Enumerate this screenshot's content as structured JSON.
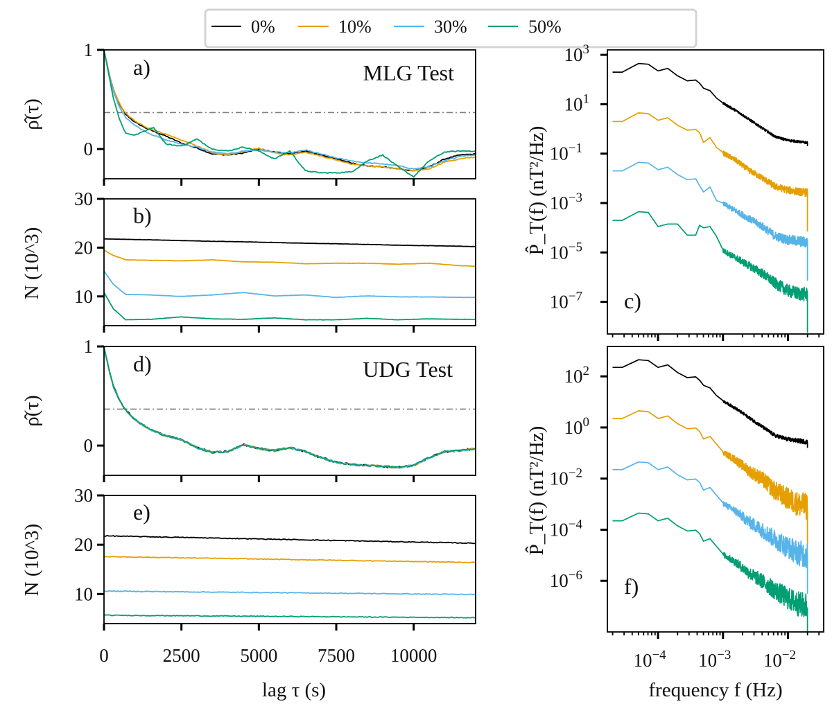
{
  "legend": {
    "entries": [
      {
        "label": "0%",
        "color": "#000000"
      },
      {
        "label": "10%",
        "color": "#E69F00"
      },
      {
        "label": "30%",
        "color": "#56B4E9"
      },
      {
        "label": "50%",
        "color": "#009E73"
      }
    ],
    "placement": "top-center"
  },
  "chart_data": [
    {
      "id": "a",
      "type": "line",
      "panel_label": "a)",
      "annotation": "MLG Test",
      "ylabel": "ρ̂(τ)",
      "xlabel": "",
      "xlim": [
        0,
        12000
      ],
      "ylim": [
        -0.3,
        1.0
      ],
      "yticks": [
        0,
        1
      ],
      "ytick_labels": [
        "0",
        "1"
      ],
      "xticks": [
        0,
        2500,
        5000,
        7500,
        10000
      ],
      "reference_line": {
        "y": 0.368,
        "style": "dash-dot",
        "color": "#808080"
      },
      "x": [
        0,
        150,
        300,
        500,
        700,
        1000,
        1300,
        1600,
        2000,
        2500,
        3000,
        3500,
        4000,
        4500,
        5000,
        5500,
        6000,
        6500,
        7000,
        7500,
        8000,
        8500,
        9000,
        9500,
        10000,
        10500,
        11000,
        11500,
        12000
      ],
      "series": [
        {
          "name": "0%",
          "values": [
            1.0,
            0.78,
            0.6,
            0.45,
            0.35,
            0.27,
            0.22,
            0.18,
            0.13,
            0.06,
            0.01,
            -0.05,
            -0.06,
            -0.04,
            0.0,
            -0.03,
            -0.05,
            -0.02,
            -0.06,
            -0.1,
            -0.14,
            -0.17,
            -0.18,
            -0.2,
            -0.22,
            -0.18,
            -0.1,
            -0.06,
            -0.05
          ]
        },
        {
          "name": "10%",
          "values": [
            1.0,
            0.78,
            0.6,
            0.46,
            0.36,
            0.28,
            0.23,
            0.19,
            0.15,
            0.09,
            0.03,
            -0.04,
            -0.06,
            -0.03,
            0.01,
            -0.04,
            -0.06,
            -0.03,
            -0.07,
            -0.11,
            -0.15,
            -0.17,
            -0.18,
            -0.2,
            -0.22,
            -0.2,
            -0.13,
            -0.1,
            -0.08
          ]
        },
        {
          "name": "30%",
          "values": [
            1.0,
            0.77,
            0.58,
            0.42,
            0.32,
            0.24,
            0.18,
            0.14,
            0.09,
            0.05,
            0.02,
            -0.03,
            -0.05,
            -0.02,
            -0.01,
            -0.03,
            -0.04,
            -0.01,
            -0.05,
            -0.09,
            -0.12,
            -0.14,
            -0.15,
            -0.17,
            -0.2,
            -0.18,
            -0.12,
            -0.07,
            -0.06
          ]
        },
        {
          "name": "50%",
          "values": [
            1.0,
            0.76,
            0.52,
            0.3,
            0.16,
            0.14,
            0.18,
            0.22,
            0.05,
            0.03,
            0.1,
            0.0,
            -0.02,
            0.02,
            -0.02,
            -0.1,
            -0.02,
            -0.22,
            -0.24,
            -0.24,
            -0.23,
            -0.12,
            -0.06,
            -0.18,
            -0.28,
            -0.12,
            -0.03,
            -0.02,
            -0.02
          ]
        }
      ]
    },
    {
      "id": "b",
      "type": "line",
      "panel_label": "b)",
      "ylabel": "N (10^3)",
      "xlabel": "",
      "xlim": [
        0,
        12000
      ],
      "ylim": [
        4,
        30
      ],
      "yticks": [
        10,
        20,
        30
      ],
      "ytick_labels": [
        "10",
        "20",
        "30"
      ],
      "xticks": [
        0,
        2500,
        5000,
        7500,
        10000
      ],
      "x": [
        0,
        300,
        700,
        1500,
        2500,
        3500,
        4500,
        5500,
        6500,
        7500,
        8500,
        9500,
        10500,
        11500,
        12000
      ],
      "series": [
        {
          "name": "0%",
          "values": [
            21.8,
            21.75,
            21.7,
            21.6,
            21.45,
            21.3,
            21.2,
            21.05,
            20.9,
            20.8,
            20.65,
            20.5,
            20.4,
            20.3,
            20.2
          ]
        },
        {
          "name": "10%",
          "values": [
            19.5,
            18.4,
            17.5,
            17.4,
            17.3,
            17.5,
            17.1,
            17.0,
            16.7,
            16.8,
            16.8,
            16.6,
            16.8,
            16.3,
            16.2
          ]
        },
        {
          "name": "30%",
          "values": [
            15.2,
            12.5,
            10.4,
            10.3,
            10.0,
            10.3,
            10.8,
            10.1,
            10.3,
            9.8,
            10.1,
            9.9,
            9.9,
            9.8,
            9.8
          ]
        },
        {
          "name": "50%",
          "values": [
            10.8,
            7.5,
            5.2,
            5.3,
            5.8,
            5.4,
            5.3,
            5.6,
            5.2,
            5.2,
            5.5,
            5.2,
            5.4,
            5.3,
            5.3
          ]
        }
      ]
    },
    {
      "id": "c",
      "type": "line",
      "panel_label": "c)",
      "ylabel": "P̂_T(f) (nT²/Hz)",
      "xlabel": "",
      "xscale": "log",
      "yscale": "log",
      "xlim_log10": [
        -4.78,
        -1.45
      ],
      "ylim_log10": [
        -8.3,
        3.2
      ],
      "ytick_exponents": [
        3,
        1,
        -1,
        -3,
        -5,
        -7
      ],
      "ytick_labels": [
        "10^3",
        "10^1",
        "10^-1",
        "10^-3",
        "10^-5",
        "10^-7"
      ],
      "xtick_exponents": [
        -4,
        -3,
        -2
      ],
      "log10_f": [
        -4.7,
        -4.55,
        -4.3,
        -4.15,
        -4.0,
        -3.85,
        -3.7,
        -3.55,
        -3.42,
        -3.36,
        -3.3,
        -3.2,
        -3.1,
        -3.0,
        -2.8,
        -2.6,
        -2.4,
        -2.2,
        -2.0,
        -1.85,
        -1.7
      ],
      "series": [
        {
          "name": "0%",
          "log10_values": [
            2.3,
            2.3,
            2.65,
            2.62,
            2.35,
            2.45,
            2.15,
            1.95,
            1.98,
            1.85,
            1.65,
            1.55,
            1.25,
            1.05,
            0.75,
            0.4,
            0.05,
            -0.3,
            -0.45,
            -0.5,
            -0.55
          ]
        },
        {
          "name": "10%",
          "log10_values": [
            0.3,
            0.3,
            0.65,
            0.62,
            0.35,
            0.45,
            0.15,
            -0.05,
            -0.02,
            -0.15,
            -0.55,
            -0.35,
            -0.75,
            -0.95,
            -1.25,
            -1.65,
            -1.95,
            -2.3,
            -2.45,
            -2.5,
            -2.55
          ]
        },
        {
          "name": "30%",
          "log10_values": [
            -1.7,
            -1.7,
            -1.35,
            -1.38,
            -1.65,
            -1.55,
            -1.85,
            -2.05,
            -2.02,
            -2.3,
            -2.55,
            -2.35,
            -2.9,
            -3.0,
            -3.3,
            -3.6,
            -3.9,
            -4.3,
            -4.45,
            -4.5,
            -4.55
          ]
        },
        {
          "name": "50%",
          "log10_values": [
            -3.7,
            -3.7,
            -3.35,
            -3.38,
            -3.95,
            -3.85,
            -3.85,
            -4.3,
            -4.3,
            -3.9,
            -4.0,
            -3.95,
            -4.35,
            -4.9,
            -5.2,
            -5.5,
            -5.8,
            -6.2,
            -6.5,
            -6.6,
            -6.65
          ]
        }
      ]
    },
    {
      "id": "d",
      "type": "line",
      "panel_label": "d)",
      "annotation": "UDG Test",
      "ylabel": "ρ̂(τ)",
      "xlabel": "",
      "xlim": [
        0,
        12000
      ],
      "ylim": [
        -0.3,
        1.0
      ],
      "yticks": [
        0,
        1
      ],
      "ytick_labels": [
        "0",
        "1"
      ],
      "xticks": [
        0,
        2500,
        5000,
        7500,
        10000
      ],
      "reference_line": {
        "y": 0.368,
        "style": "dash-dot",
        "color": "#808080"
      },
      "x": [
        0,
        150,
        300,
        500,
        700,
        1000,
        1500,
        2000,
        2500,
        3000,
        3500,
        4000,
        4500,
        5000,
        5500,
        6000,
        6500,
        7000,
        7500,
        8000,
        8500,
        9000,
        9500,
        10000,
        10500,
        11000,
        11500,
        12000
      ],
      "series": [
        {
          "name": "0%",
          "values": [
            1.0,
            0.78,
            0.6,
            0.46,
            0.36,
            0.26,
            0.16,
            0.1,
            0.06,
            -0.02,
            -0.07,
            -0.06,
            0.01,
            -0.03,
            -0.05,
            -0.02,
            -0.06,
            -0.12,
            -0.17,
            -0.19,
            -0.2,
            -0.21,
            -0.22,
            -0.2,
            -0.12,
            -0.06,
            -0.05,
            -0.03
          ]
        },
        {
          "name": "10%",
          "values": [
            1.0,
            0.78,
            0.6,
            0.46,
            0.36,
            0.26,
            0.16,
            0.1,
            0.06,
            -0.02,
            -0.07,
            -0.06,
            0.01,
            -0.03,
            -0.05,
            -0.02,
            -0.06,
            -0.12,
            -0.17,
            -0.19,
            -0.2,
            -0.21,
            -0.22,
            -0.2,
            -0.12,
            -0.06,
            -0.05,
            -0.03
          ]
        },
        {
          "name": "30%",
          "values": [
            1.0,
            0.78,
            0.6,
            0.46,
            0.36,
            0.26,
            0.16,
            0.1,
            0.06,
            -0.02,
            -0.07,
            -0.06,
            0.01,
            -0.03,
            -0.05,
            -0.02,
            -0.06,
            -0.12,
            -0.17,
            -0.19,
            -0.2,
            -0.21,
            -0.22,
            -0.2,
            -0.12,
            -0.06,
            -0.05,
            -0.03
          ]
        },
        {
          "name": "50%",
          "values": [
            1.0,
            0.78,
            0.6,
            0.46,
            0.36,
            0.26,
            0.16,
            0.1,
            0.06,
            -0.02,
            -0.07,
            -0.06,
            0.01,
            -0.03,
            -0.05,
            -0.02,
            -0.06,
            -0.12,
            -0.17,
            -0.19,
            -0.2,
            -0.21,
            -0.22,
            -0.2,
            -0.12,
            -0.06,
            -0.05,
            -0.03
          ]
        }
      ]
    },
    {
      "id": "e",
      "type": "line",
      "panel_label": "e)",
      "ylabel": "N (10^3)",
      "xlabel": "lag τ (s)",
      "xlim": [
        0,
        12000
      ],
      "ylim": [
        4,
        30
      ],
      "yticks": [
        10,
        20,
        30
      ],
      "ytick_labels": [
        "10",
        "20",
        "30"
      ],
      "xticks": [
        0,
        2500,
        5000,
        7500,
        10000
      ],
      "xtick_labels": [
        "0",
        "2500",
        "5000",
        "7500",
        "10000"
      ],
      "x": [
        0,
        12000
      ],
      "series": [
        {
          "name": "0%",
          "values": [
            21.8,
            20.3
          ]
        },
        {
          "name": "10%",
          "values": [
            17.6,
            16.4
          ]
        },
        {
          "name": "30%",
          "values": [
            10.6,
            9.9
          ]
        },
        {
          "name": "50%",
          "values": [
            5.7,
            5.2
          ]
        }
      ]
    },
    {
      "id": "f",
      "type": "line",
      "panel_label": "f)",
      "ylabel": "P̂_T(f) (nT²/Hz)",
      "xlabel": "frequency f (Hz)",
      "xscale": "log",
      "yscale": "log",
      "xlim_log10": [
        -4.78,
        -1.45
      ],
      "ylim_log10": [
        -8.0,
        3.17
      ],
      "ytick_exponents": [
        2,
        0,
        -2,
        -4,
        -6
      ],
      "ytick_labels": [
        "10^2",
        "10^0",
        "10^-2",
        "10^-4",
        "10^-6"
      ],
      "xtick_exponents": [
        -4,
        -3,
        -2
      ],
      "xtick_labels": [
        "10^-4",
        "10^-3",
        "10^-2"
      ],
      "log10_f": [
        -4.7,
        -4.55,
        -4.3,
        -4.15,
        -4.0,
        -3.85,
        -3.7,
        -3.55,
        -3.42,
        -3.36,
        -3.3,
        -3.2,
        -3.1,
        -3.0,
        -2.8,
        -2.6,
        -2.4,
        -2.2,
        -2.0,
        -1.85,
        -1.7
      ],
      "series": [
        {
          "name": "0%",
          "log10_values": [
            2.35,
            2.35,
            2.65,
            2.62,
            2.35,
            2.45,
            2.15,
            1.95,
            1.98,
            1.85,
            1.65,
            1.55,
            1.25,
            1.05,
            0.75,
            0.4,
            0.05,
            -0.3,
            -0.45,
            -0.5,
            -0.55
          ]
        },
        {
          "name": "10%",
          "log10_values": [
            0.35,
            0.35,
            0.65,
            0.62,
            0.35,
            0.45,
            0.15,
            -0.05,
            -0.02,
            -0.15,
            -0.45,
            -0.35,
            -0.65,
            -0.95,
            -1.25,
            -1.65,
            -1.95,
            -2.4,
            -2.7,
            -2.9,
            -3.0
          ]
        },
        {
          "name": "30%",
          "log10_values": [
            -1.65,
            -1.65,
            -1.35,
            -1.38,
            -1.65,
            -1.55,
            -1.85,
            -2.05,
            -2.02,
            -2.15,
            -2.45,
            -2.35,
            -2.65,
            -2.95,
            -3.25,
            -3.65,
            -3.95,
            -4.3,
            -4.6,
            -4.8,
            -4.9
          ]
        },
        {
          "name": "50%",
          "log10_values": [
            -3.65,
            -3.65,
            -3.35,
            -3.38,
            -3.65,
            -3.55,
            -3.85,
            -4.05,
            -4.02,
            -4.15,
            -4.45,
            -4.35,
            -4.65,
            -4.95,
            -5.25,
            -5.65,
            -5.95,
            -6.3,
            -6.6,
            -6.8,
            -6.9
          ]
        }
      ]
    }
  ]
}
